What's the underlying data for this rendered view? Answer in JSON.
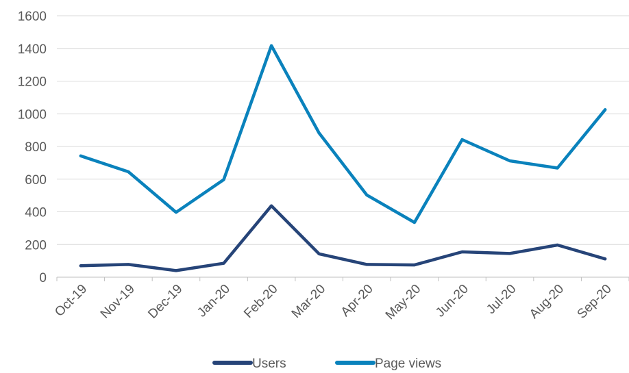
{
  "chart_data": {
    "type": "line",
    "title": "",
    "xlabel": "",
    "ylabel": "",
    "ylim": [
      0,
      1600
    ],
    "yticks": [
      0,
      200,
      400,
      600,
      800,
      1000,
      1200,
      1400,
      1600
    ],
    "ytick_labels": [
      "0",
      "200",
      "400",
      "600",
      "800",
      "1000",
      "1200",
      "1400",
      "1600"
    ],
    "categories": [
      "Oct-19",
      "Nov-19",
      "Dec-19",
      "Jan-20",
      "Feb-20",
      "Mar-20",
      "Apr-20",
      "May-20",
      "Jun-20",
      "Jul-20",
      "Aug-20",
      "Sep-20"
    ],
    "grid": true,
    "legend_position": "bottom",
    "series": [
      {
        "name": "Users",
        "color": "#264478",
        "values": [
          70,
          78,
          40,
          85,
          437,
          143,
          78,
          75,
          155,
          145,
          197,
          112
        ]
      },
      {
        "name": "Page views",
        "color": "#0a82bc",
        "values": [
          742,
          645,
          397,
          597,
          1417,
          882,
          503,
          335,
          842,
          712,
          668,
          1025
        ]
      }
    ]
  }
}
